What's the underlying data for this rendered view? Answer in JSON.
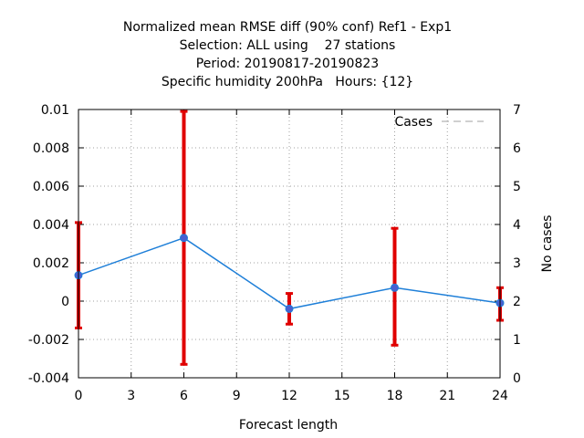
{
  "chart_data": {
    "type": "line",
    "title_lines": [
      "Normalized mean RMSE diff (90% conf) Ref1 - Exp1",
      "Selection: ALL using    27 stations",
      "Period: 20190817-20190823",
      "Specific humidity 200hPa   Hours: {12}"
    ],
    "xlabel": "Forecast length",
    "ylabel": "",
    "y2label": "No cases",
    "xlim": [
      0,
      24
    ],
    "ylim": [
      -0.004,
      0.01
    ],
    "y2lim": [
      0,
      7
    ],
    "x_ticks": [
      0,
      3,
      6,
      9,
      12,
      15,
      18,
      21,
      24
    ],
    "y_ticks": [
      -0.004,
      -0.002,
      0,
      0.002,
      0.004,
      0.006,
      0.008,
      0.01
    ],
    "y_tick_labels": [
      "-0.004",
      "-0.002",
      "0",
      "0.002",
      "0.004",
      "0.006",
      "0.008",
      "0.01"
    ],
    "y2_ticks": [
      0,
      1,
      2,
      3,
      4,
      5,
      6,
      7
    ],
    "grid": true,
    "legend": {
      "placement": "top-right",
      "entries": [
        "Cases"
      ]
    },
    "series": [
      {
        "kind": "mean",
        "color": "#1e7fd8",
        "x": [
          0,
          6,
          12,
          18,
          24
        ],
        "y": [
          0.00135,
          0.0033,
          -0.0004,
          0.0007,
          -0.0001
        ]
      },
      {
        "kind": "confidence",
        "color": "#e00000",
        "x": [
          0,
          6,
          12,
          18,
          24
        ],
        "low": [
          -0.0014,
          -0.0033,
          -0.0012,
          -0.0023,
          -0.001
        ],
        "high": [
          0.0041,
          0.0099,
          0.0004,
          0.0038,
          0.0007
        ]
      },
      {
        "name": "Cases",
        "kind": "cases",
        "axis": "y2",
        "color": "#a0a0a0",
        "x": [
          0,
          6,
          12,
          18,
          24
        ],
        "y": [
          7,
          7,
          7,
          7,
          7
        ]
      }
    ]
  }
}
